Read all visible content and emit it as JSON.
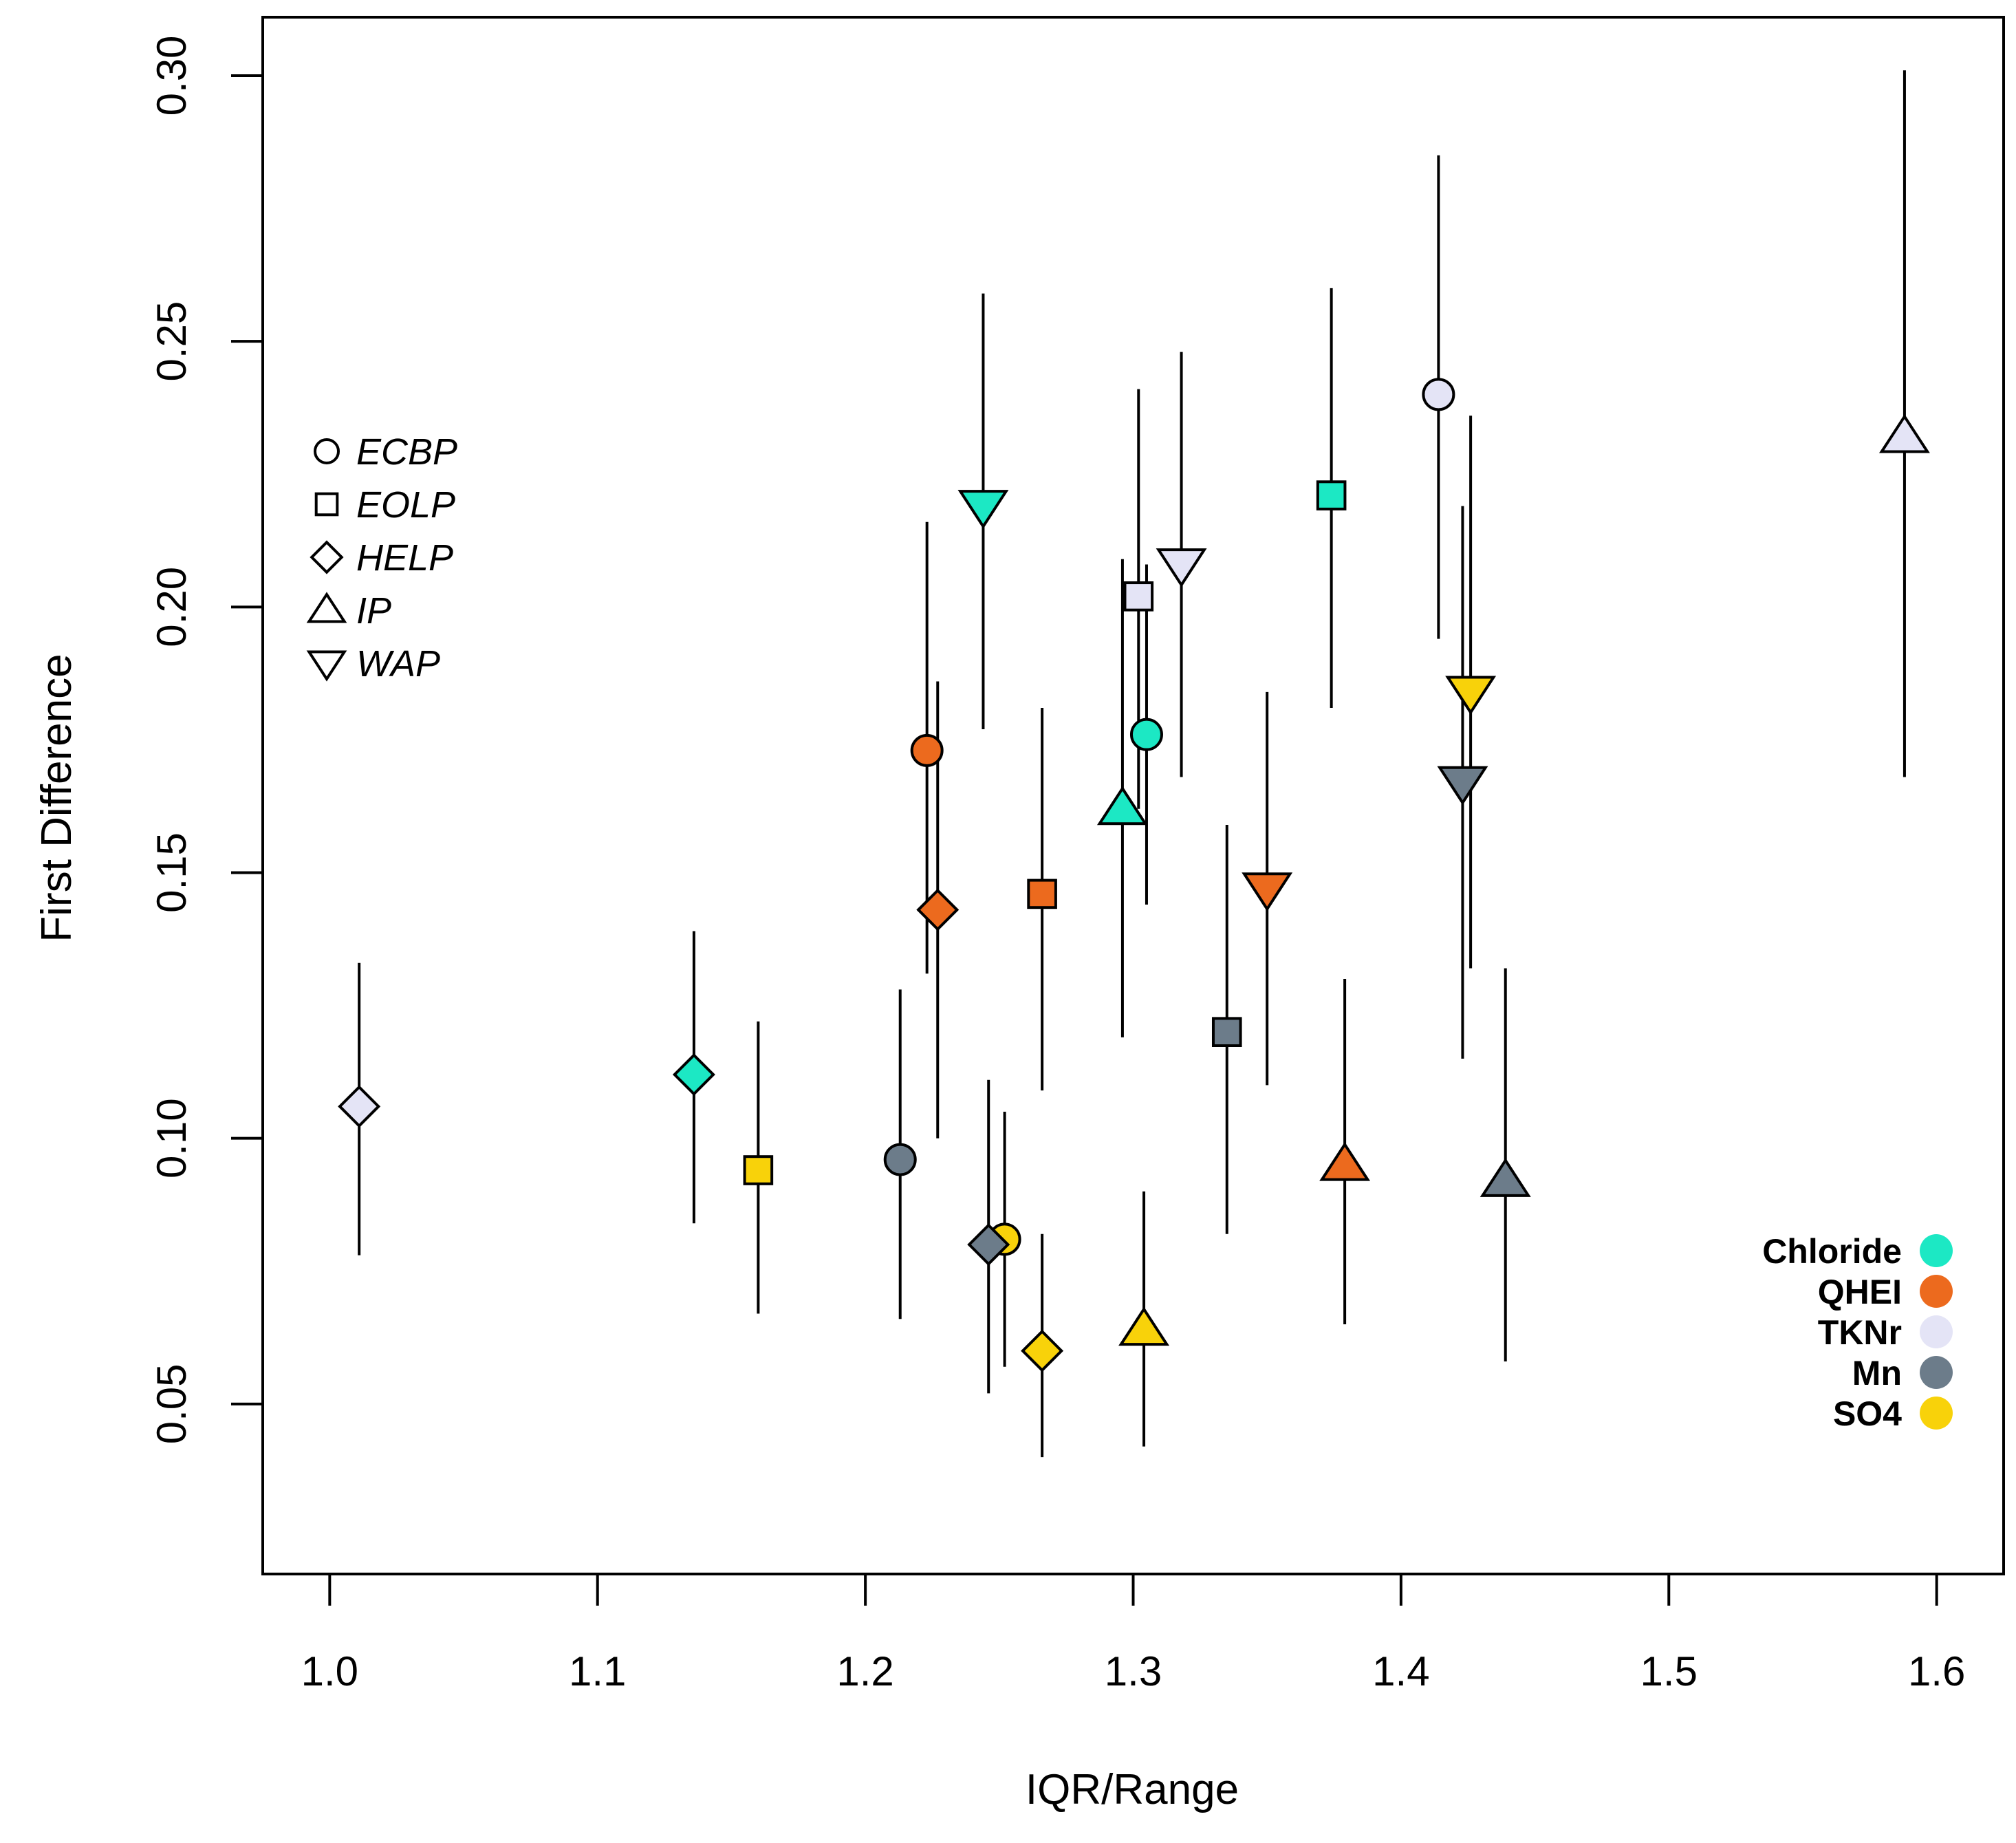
{
  "chart_data": {
    "type": "scatter",
    "title": "",
    "xlabel": "IQR/Range",
    "ylabel": "First Difference",
    "xlim": [
      0.975,
      1.625
    ],
    "ylim": [
      0.018,
      0.311
    ],
    "x_ticks": [
      1.0,
      1.1,
      1.2,
      1.3,
      1.4,
      1.5,
      1.6
    ],
    "x_tick_labels": [
      "1.0",
      "1.1",
      "1.2",
      "1.3",
      "1.4",
      "1.5",
      "1.6"
    ],
    "y_ticks": [
      0.05,
      0.1,
      0.15,
      0.2,
      0.25,
      0.3
    ],
    "y_tick_labels": [
      "0.05",
      "0.10",
      "0.15",
      "0.20",
      "0.25",
      "0.30"
    ],
    "grid": false,
    "shape_legend": {
      "placement": "top-left",
      "entries": [
        {
          "label": "ECBP",
          "shape": "circle"
        },
        {
          "label": "EOLP",
          "shape": "square"
        },
        {
          "label": "HELP",
          "shape": "diamond"
        },
        {
          "label": "IP",
          "shape": "triangle-up"
        },
        {
          "label": "WAP",
          "shape": "triangle-down"
        }
      ]
    },
    "color_legend": {
      "placement": "bottom-right",
      "entries": [
        {
          "label": "Chloride",
          "color": "#1ce8c4"
        },
        {
          "label": "QHEI",
          "color": "#ec6a1e"
        },
        {
          "label": "TKNr",
          "color": "#e4e4f6"
        },
        {
          "label": "Mn",
          "color": "#6c7c8a"
        },
        {
          "label": "SO4",
          "color": "#f8d20a"
        }
      ]
    },
    "points": [
      {
        "variable": "TKNr",
        "ecoregion": "HELP",
        "x": 1.011,
        "y": 0.106,
        "lo": 0.078,
        "hi": 0.133
      },
      {
        "variable": "Chloride",
        "ecoregion": "HELP",
        "x": 1.136,
        "y": 0.112,
        "lo": 0.084,
        "hi": 0.139
      },
      {
        "variable": "SO4",
        "ecoregion": "EOLP",
        "x": 1.16,
        "y": 0.094,
        "lo": 0.067,
        "hi": 0.122
      },
      {
        "variable": "Mn",
        "ecoregion": "ECBP",
        "x": 1.213,
        "y": 0.096,
        "lo": 0.066,
        "hi": 0.128
      },
      {
        "variable": "QHEI",
        "ecoregion": "ECBP",
        "x": 1.223,
        "y": 0.173,
        "lo": 0.131,
        "hi": 0.216
      },
      {
        "variable": "QHEI",
        "ecoregion": "HELP",
        "x": 1.227,
        "y": 0.143,
        "lo": 0.1,
        "hi": 0.186
      },
      {
        "variable": "Chloride",
        "ecoregion": "WAP",
        "x": 1.244,
        "y": 0.219,
        "lo": 0.177,
        "hi": 0.259
      },
      {
        "variable": "SO4",
        "ecoregion": "ECBP",
        "x": 1.252,
        "y": 0.081,
        "lo": 0.057,
        "hi": 0.105
      },
      {
        "variable": "Mn",
        "ecoregion": "HELP",
        "x": 1.246,
        "y": 0.08,
        "lo": 0.052,
        "hi": 0.111
      },
      {
        "variable": "QHEI",
        "ecoregion": "EOLP",
        "x": 1.266,
        "y": 0.146,
        "lo": 0.109,
        "hi": 0.181
      },
      {
        "variable": "SO4",
        "ecoregion": "HELP",
        "x": 1.266,
        "y": 0.06,
        "lo": 0.04,
        "hi": 0.082
      },
      {
        "variable": "Chloride",
        "ecoregion": "IP",
        "x": 1.296,
        "y": 0.162,
        "lo": 0.119,
        "hi": 0.209
      },
      {
        "variable": "TKNr",
        "ecoregion": "EOLP",
        "x": 1.302,
        "y": 0.202,
        "lo": 0.162,
        "hi": 0.241
      },
      {
        "variable": "Chloride",
        "ecoregion": "ECBP",
        "x": 1.305,
        "y": 0.176,
        "lo": 0.144,
        "hi": 0.208
      },
      {
        "variable": "SO4",
        "ecoregion": "IP",
        "x": 1.304,
        "y": 0.064,
        "lo": 0.042,
        "hi": 0.09
      },
      {
        "variable": "TKNr",
        "ecoregion": "WAP",
        "x": 1.318,
        "y": 0.208,
        "lo": 0.168,
        "hi": 0.248
      },
      {
        "variable": "Mn",
        "ecoregion": "EOLP",
        "x": 1.335,
        "y": 0.12,
        "lo": 0.082,
        "hi": 0.159
      },
      {
        "variable": "QHEI",
        "ecoregion": "WAP",
        "x": 1.35,
        "y": 0.147,
        "lo": 0.11,
        "hi": 0.184
      },
      {
        "variable": "Chloride",
        "ecoregion": "EOLP",
        "x": 1.374,
        "y": 0.221,
        "lo": 0.181,
        "hi": 0.26
      },
      {
        "variable": "QHEI",
        "ecoregion": "IP",
        "x": 1.379,
        "y": 0.095,
        "lo": 0.065,
        "hi": 0.13
      },
      {
        "variable": "TKNr",
        "ecoregion": "ECBP",
        "x": 1.414,
        "y": 0.24,
        "lo": 0.194,
        "hi": 0.285
      },
      {
        "variable": "Mn",
        "ecoregion": "WAP",
        "x": 1.423,
        "y": 0.167,
        "lo": 0.115,
        "hi": 0.219
      },
      {
        "variable": "SO4",
        "ecoregion": "WAP",
        "x": 1.426,
        "y": 0.184,
        "lo": 0.132,
        "hi": 0.236
      },
      {
        "variable": "Mn",
        "ecoregion": "IP",
        "x": 1.439,
        "y": 0.092,
        "lo": 0.058,
        "hi": 0.132
      },
      {
        "variable": "TKNr",
        "ecoregion": "IP",
        "x": 1.588,
        "y": 0.232,
        "lo": 0.168,
        "hi": 0.301
      }
    ]
  }
}
